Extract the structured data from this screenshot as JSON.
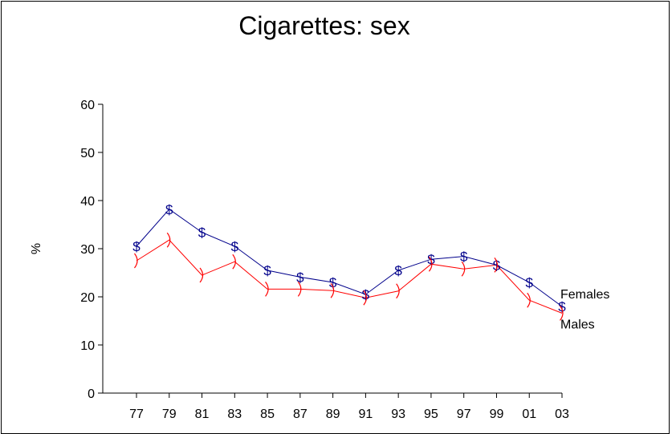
{
  "chart_data": {
    "type": "line",
    "title": "Cigarettes:  sex",
    "xlabel": "",
    "ylabel": "%",
    "ylim": [
      0,
      60
    ],
    "yticks": [
      "0",
      "10",
      "20",
      "30",
      "40",
      "50",
      "60"
    ],
    "categories": [
      "77",
      "79",
      "81",
      "83",
      "85",
      "87",
      "89",
      "91",
      "93",
      "95",
      "97",
      "99",
      "01",
      "03"
    ],
    "series": [
      {
        "name": "Females",
        "marker": "$",
        "color": "#00008b",
        "values": [
          30.5,
          38.2,
          33.4,
          30.5,
          25.5,
          24.1,
          23.0,
          20.5,
          25.5,
          27.8,
          28.4,
          26.6,
          23.0,
          18.0
        ]
      },
      {
        "name": "Males",
        "marker": ")",
        "color": "#ff0000",
        "values": [
          27.5,
          31.8,
          24.5,
          27.3,
          21.6,
          21.6,
          21.3,
          19.8,
          21.2,
          26.8,
          25.8,
          26.6,
          19.3,
          16.6
        ]
      }
    ],
    "grid": false,
    "legend": "none"
  }
}
